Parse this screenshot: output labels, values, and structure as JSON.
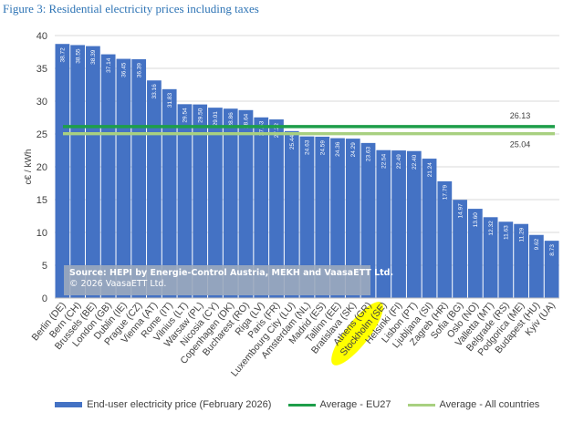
{
  "figure_title": "Figure 3: Residential electricity prices including taxes",
  "source": {
    "line1": "Source: HEPI by Energie-Control Austria, MEKH and VaasaETT Ltd.",
    "line2": "© 2026 VaasaETT Ltd."
  },
  "colors": {
    "bar": "#4472c4",
    "eu27": "#1e9e4a",
    "all_countries": "#a8d080",
    "highlight": "#ffff00",
    "grid": "#d9d9d9"
  },
  "chart_data": {
    "type": "bar",
    "title": "",
    "xlabel": "",
    "ylabel": "c€ / kWh",
    "ylim": [
      0,
      40
    ],
    "yticks": [
      "0",
      "5",
      "10",
      "15",
      "20",
      "25",
      "30",
      "35",
      "40"
    ],
    "grid": true,
    "legend_position": "bottom",
    "highlighted_category": "Athens (GR)",
    "categories": [
      "Berlin (DE)",
      "Bern (CH)",
      "Brussels (BE)",
      "London (GB)",
      "Dublin (IE)",
      "Prague (CZ)",
      "Vienna (AT)",
      "Rome (IT)",
      "Vilnius (LT)",
      "Warsaw (PL)",
      "Nicosia (CY)",
      "Copenhagen (DK)",
      "Bucharest (RO)",
      "Riga (LV)",
      "Paris (FR)",
      "Luxembourg City (LU)",
      "Amsterdam (NL)",
      "Madrid (ES)",
      "Tallinn (EE)",
      "Bratislava (SK)",
      "Athens (GR)",
      "Stockholm (SE)",
      "Helsinki (FI)",
      "Lisbon (PT)",
      "Ljubljana (SI)",
      "Zagreb (HR)",
      "Sofia (BG)",
      "Oslo (NO)",
      "Valletta (MT)",
      "Belgrade (RS)",
      "Podgorica (ME)",
      "Budapest (HU)",
      "Kyiv (UA)"
    ],
    "series": [
      {
        "name": "End-user electricity price (February 2026)",
        "values": [
          38.72,
          38.55,
          38.39,
          37.14,
          36.45,
          36.39,
          33.16,
          31.83,
          29.54,
          29.5,
          29.01,
          28.86,
          28.64,
          27.53,
          27.22,
          25.44,
          24.63,
          24.59,
          24.36,
          24.29,
          23.63,
          22.54,
          22.49,
          22.4,
          21.24,
          17.79,
          14.97,
          13.6,
          12.32,
          11.63,
          11.29,
          9.62,
          8.73
        ],
        "labels": [
          "38.72",
          "38.55",
          "38.39",
          "37.14",
          "36.45",
          "36.39",
          "33.16",
          "31.83",
          "29.54",
          "29.50",
          "29.01",
          "28.86",
          "28.64",
          "27.53",
          "27.22",
          "25.44",
          "24.63",
          "24.59",
          "24.36",
          "24.29",
          "23.63",
          "22.54",
          "22.49",
          "22.40",
          "21.24",
          "17.79",
          "14.97",
          "13.60",
          "12.32",
          "11.63",
          "11.29",
          "9.62",
          "8.73"
        ]
      }
    ],
    "reference_lines": [
      {
        "name": "Average - EU27",
        "value": 26.13,
        "label": "26.13"
      },
      {
        "name": "Average - All countries",
        "value": 25.04,
        "label": "25.04"
      }
    ]
  }
}
